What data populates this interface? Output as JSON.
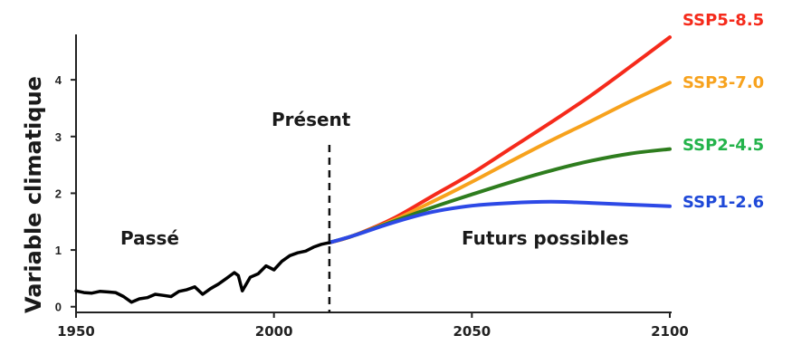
{
  "chart_data": {
    "type": "line",
    "title": "",
    "xlabel": "",
    "ylabel": "Variable climatique",
    "xlim": [
      1950,
      2100
    ],
    "ylim": [
      -0.1,
      4.8
    ],
    "xticks": [
      1950,
      2000,
      2050,
      2100
    ],
    "yticks": [
      0,
      1,
      2,
      3,
      4
    ],
    "grid": false,
    "annotations": {
      "past": "Passé",
      "present": "Présent",
      "future": "Futurs possibles"
    },
    "present_year": 2014,
    "historical": {
      "color": "#000000",
      "x": [
        1950,
        1952,
        1954,
        1956,
        1958,
        1960,
        1962,
        1964,
        1966,
        1968,
        1970,
        1972,
        1974,
        1976,
        1978,
        1980,
        1982,
        1984,
        1986,
        1988,
        1990,
        1991,
        1992,
        1994,
        1996,
        1998,
        2000,
        2002,
        2004,
        2006,
        2008,
        2010,
        2012,
        2014
      ],
      "y": [
        0.28,
        0.25,
        0.24,
        0.27,
        0.26,
        0.25,
        0.18,
        0.08,
        0.14,
        0.16,
        0.22,
        0.2,
        0.18,
        0.27,
        0.3,
        0.35,
        0.22,
        0.32,
        0.4,
        0.5,
        0.6,
        0.55,
        0.28,
        0.52,
        0.58,
        0.72,
        0.65,
        0.8,
        0.9,
        0.95,
        0.98,
        1.05,
        1.1,
        1.13
      ]
    },
    "series": [
      {
        "name": "SSP5-8.5",
        "color": "#f52a1b",
        "x": [
          2014,
          2020,
          2030,
          2040,
          2050,
          2060,
          2070,
          2080,
          2090,
          2100
        ],
        "y": [
          1.13,
          1.25,
          1.55,
          1.95,
          2.35,
          2.8,
          3.25,
          3.72,
          4.23,
          4.75
        ]
      },
      {
        "name": "SSP3-7.0",
        "color": "#f7a21d",
        "x": [
          2014,
          2020,
          2030,
          2040,
          2050,
          2060,
          2070,
          2080,
          2090,
          2100
        ],
        "y": [
          1.13,
          1.25,
          1.52,
          1.85,
          2.2,
          2.57,
          2.93,
          3.27,
          3.62,
          3.95
        ]
      },
      {
        "name": "SSP2-4.5",
        "color": "#2e7d1e",
        "x": [
          2014,
          2020,
          2030,
          2040,
          2050,
          2060,
          2070,
          2080,
          2090,
          2100
        ],
        "y": [
          1.13,
          1.25,
          1.5,
          1.75,
          1.98,
          2.2,
          2.4,
          2.57,
          2.7,
          2.78
        ]
      },
      {
        "name": "SSP1-2.6",
        "color": "#2d49e6",
        "x": [
          2014,
          2020,
          2030,
          2040,
          2050,
          2060,
          2070,
          2080,
          2090,
          2100
        ],
        "y": [
          1.13,
          1.25,
          1.48,
          1.67,
          1.78,
          1.83,
          1.85,
          1.83,
          1.8,
          1.77
        ]
      }
    ],
    "series_label_colors": {
      "SSP5-8.5": "#f52a1b",
      "SSP3-7.0": "#f7a21d",
      "SSP2-4.5": "#23b34a",
      "SSP1-2.6": "#1f49d8"
    }
  }
}
